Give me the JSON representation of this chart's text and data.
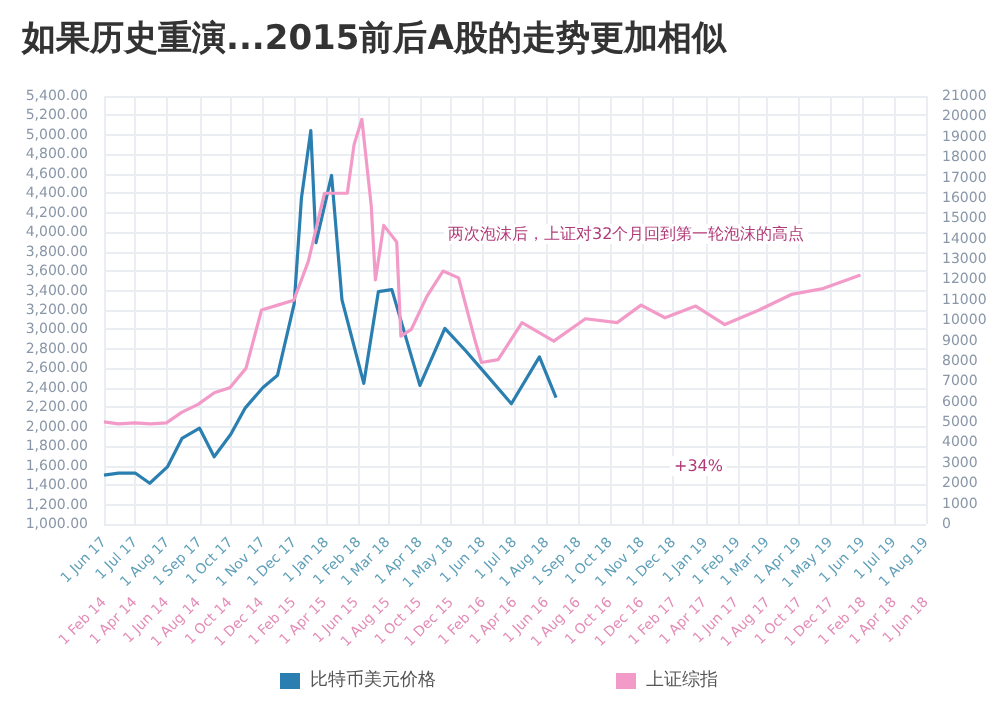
{
  "chart_data": {
    "type": "line",
    "title": "如果历史重演...2015前后A股的走势更加相似",
    "annotations": [
      "两次泡沫后，上证对32个月回到第一轮泡沫的高点",
      "+34%"
    ],
    "grid": true,
    "legend": "bottom",
    "marker": "none",
    "line_style": "solid",
    "series": [
      {
        "name": "比特币美元价格",
        "color": "#2a7fb0",
        "axis": "y2",
        "x": [
          "2017-06-01",
          "2017-06-15",
          "2017-07-01",
          "2017-07-15",
          "2017-08-01",
          "2017-08-15",
          "2017-09-01",
          "2017-09-15",
          "2017-10-01",
          "2017-10-15",
          "2017-11-01",
          "2017-11-15",
          "2017-12-01",
          "2017-12-08",
          "2017-12-17",
          "2017-12-22",
          "2018-01-06",
          "2018-01-16",
          "2018-02-06",
          "2018-02-20",
          "2018-03-05",
          "2018-04-01",
          "2018-04-25",
          "2018-05-15",
          "2018-06-01",
          "2018-06-28",
          "2018-07-25",
          "2018-08-10"
        ],
        "values": [
          2400,
          2500,
          2500,
          2000,
          2800,
          4200,
          4700,
          3300,
          4400,
          5700,
          6700,
          7300,
          10800,
          16000,
          19300,
          13800,
          17100,
          11000,
          6900,
          11400,
          11500,
          6800,
          9600,
          8500,
          7500,
          5900,
          8200,
          6200
        ]
      },
      {
        "name": "上证综指",
        "color": "#f29bc8",
        "axis": "x2",
        "x": [
          "2014-02-01",
          "2014-03-01",
          "2014-04-01",
          "2014-05-01",
          "2014-06-01",
          "2014-07-01",
          "2014-08-01",
          "2014-09-01",
          "2014-10-01",
          "2014-11-01",
          "2014-12-01",
          "2015-01-01",
          "2015-02-01",
          "2015-03-01",
          "2015-04-01",
          "2015-05-15",
          "2015-05-28",
          "2015-06-12",
          "2015-06-30",
          "2015-07-08",
          "2015-07-24",
          "2015-08-18",
          "2015-08-26",
          "2015-09-15",
          "2015-10-15",
          "2015-11-15",
          "2015-12-15",
          "2016-01-15",
          "2016-01-28",
          "2016-02-29",
          "2016-04-15",
          "2016-06-15",
          "2016-08-15",
          "2016-10-15",
          "2016-11-30",
          "2017-01-15",
          "2017-03-15",
          "2017-05-10",
          "2017-07-15",
          "2017-09-15",
          "2017-11-15",
          "2018-01-26"
        ],
        "values": [
          2050,
          2030,
          2040,
          2030,
          2040,
          2150,
          2230,
          2350,
          2400,
          2600,
          3200,
          3250,
          3300,
          3700,
          4400,
          4400,
          4900,
          5160,
          4270,
          3510,
          4070,
          3900,
          2930,
          3000,
          3340,
          3600,
          3530,
          2900,
          2660,
          2690,
          3070,
          2880,
          3110,
          3070,
          3250,
          3120,
          3240,
          3050,
          3200,
          3360,
          3420,
          3560
        ]
      }
    ],
    "ylim": [
      1000,
      5400
    ],
    "yticks": [
      {
        "value": 1000,
        "label": "1,000.00"
      },
      {
        "value": 1200,
        "label": "1,200.00"
      },
      {
        "value": 1400,
        "label": "1,400.00"
      },
      {
        "value": 1600,
        "label": "1,600.00"
      },
      {
        "value": 1800,
        "label": "1,800.00"
      },
      {
        "value": 2000,
        "label": "2,000.00"
      },
      {
        "value": 2200,
        "label": "2,200.00"
      },
      {
        "value": 2400,
        "label": "2,400.00"
      },
      {
        "value": 2600,
        "label": "2,600.00"
      },
      {
        "value": 2800,
        "label": "2,800.00"
      },
      {
        "value": 3000,
        "label": "3,000.00"
      },
      {
        "value": 3200,
        "label": "3,200.00"
      },
      {
        "value": 3400,
        "label": "3,400.00"
      },
      {
        "value": 3600,
        "label": "3,600.00"
      },
      {
        "value": 3800,
        "label": "3,800.00"
      },
      {
        "value": 4000,
        "label": "4,000.00"
      },
      {
        "value": 4200,
        "label": "4,200.00"
      },
      {
        "value": 4400,
        "label": "4,400.00"
      },
      {
        "value": 4600,
        "label": "4,600.00"
      },
      {
        "value": 4800,
        "label": "4,800.00"
      },
      {
        "value": 5000,
        "label": "5,000.00"
      },
      {
        "value": 5200,
        "label": "5,200.00"
      },
      {
        "value": 5400,
        "label": "5,400.00"
      }
    ],
    "y2lim": [
      0,
      21000
    ],
    "y2ticks": [
      0,
      1000,
      2000,
      3000,
      4000,
      5000,
      6000,
      7000,
      8000,
      9000,
      10000,
      11000,
      12000,
      13000,
      14000,
      15000,
      16000,
      17000,
      18000,
      19000,
      20000,
      21000
    ],
    "x2lim": [
      "2014-02-01",
      "2018-06-01"
    ],
    "x2ticks": [
      {
        "value": "2014-02-01",
        "label": "1 Feb 14"
      },
      {
        "value": "2014-04-01",
        "label": "1 Apr 14"
      },
      {
        "value": "2014-06-01",
        "label": "1 Jun 14"
      },
      {
        "value": "2014-08-01",
        "label": "1 Aug 14"
      },
      {
        "value": "2014-10-01",
        "label": "1 Oct 14"
      },
      {
        "value": "2014-12-01",
        "label": "1 Dec 14"
      },
      {
        "value": "2015-02-01",
        "label": "1 Feb 15"
      },
      {
        "value": "2015-04-01",
        "label": "1 Apr 15"
      },
      {
        "value": "2015-06-01",
        "label": "1 Jun 15"
      },
      {
        "value": "2015-08-01",
        "label": "1 Aug 15"
      },
      {
        "value": "2015-10-01",
        "label": "1 Oct 15"
      },
      {
        "value": "2015-12-01",
        "label": "1 Dec 15"
      },
      {
        "value": "2016-02-01",
        "label": "1 Feb 16"
      },
      {
        "value": "2016-04-01",
        "label": "1 Apr 16"
      },
      {
        "value": "2016-06-01",
        "label": "1 Jun 16"
      },
      {
        "value": "2016-08-01",
        "label": "1 Aug 16"
      },
      {
        "value": "2016-10-01",
        "label": "1 Oct 16"
      },
      {
        "value": "2016-12-01",
        "label": "1 Dec 16"
      },
      {
        "value": "2017-02-01",
        "label": "1 Feb 17"
      },
      {
        "value": "2017-04-01",
        "label": "1 Apr 17"
      },
      {
        "value": "2017-06-01",
        "label": "1 Jun 17"
      },
      {
        "value": "2017-08-01",
        "label": "1 Aug 17"
      },
      {
        "value": "2017-10-01",
        "label": "1 Oct 17"
      },
      {
        "value": "2017-12-01",
        "label": "1 Dec 17"
      },
      {
        "value": "2018-02-01",
        "label": "1 Feb 18"
      },
      {
        "value": "2018-04-01",
        "label": "1 Apr 18"
      },
      {
        "value": "2018-06-01",
        "label": "1 Jun 18"
      }
    ],
    "xlim": [
      "2017-06-01",
      "2019-08-01"
    ],
    "xticks": [
      {
        "value": "2017-06-01",
        "label": "1 Jun 17"
      },
      {
        "value": "2017-07-01",
        "label": "1 Jul 17"
      },
      {
        "value": "2017-08-01",
        "label": "1 Aug 17"
      },
      {
        "value": "2017-09-01",
        "label": "1 Sep 17"
      },
      {
        "value": "2017-10-01",
        "label": "1 Oct 17"
      },
      {
        "value": "2017-11-01",
        "label": "1 Nov 17"
      },
      {
        "value": "2017-12-01",
        "label": "1 Dec 17"
      },
      {
        "value": "2018-01-01",
        "label": "1 Jan 18"
      },
      {
        "value": "2018-02-01",
        "label": "1 Feb 18"
      },
      {
        "value": "2018-03-01",
        "label": "1 Mar 18"
      },
      {
        "value": "2018-04-01",
        "label": "1 Apr 18"
      },
      {
        "value": "2018-05-01",
        "label": "1 May 18"
      },
      {
        "value": "2018-06-01",
        "label": "1 Jun 18"
      },
      {
        "value": "2018-07-01",
        "label": "1 Jul 18"
      },
      {
        "value": "2018-08-01",
        "label": "1 Aug 18"
      },
      {
        "value": "2018-09-01",
        "label": "1 Sep 18"
      },
      {
        "value": "2018-10-01",
        "label": "1 Oct 18"
      },
      {
        "value": "2018-11-01",
        "label": "1 Nov 18"
      },
      {
        "value": "2018-12-01",
        "label": "1 Dec 18"
      },
      {
        "value": "2019-01-01",
        "label": "1 Jan 19"
      },
      {
        "value": "2019-02-01",
        "label": "1 Feb 19"
      },
      {
        "value": "2019-03-01",
        "label": "1 Mar 19"
      },
      {
        "value": "2019-04-01",
        "label": "1 Apr 19"
      },
      {
        "value": "2019-05-01",
        "label": "1 May 19"
      },
      {
        "value": "2019-06-01",
        "label": "1 Jun 19"
      },
      {
        "value": "2019-07-01",
        "label": "1 Jul 19"
      },
      {
        "value": "2019-08-01",
        "label": "1 Aug 19"
      }
    ]
  }
}
